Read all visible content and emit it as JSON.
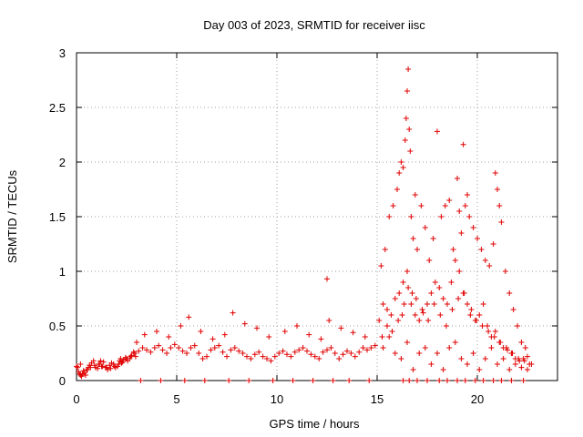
{
  "chart_data": {
    "type": "scatter",
    "title": "Day 003 of 2023, SRMTID for receiver iisc",
    "xlabel": "GPS time / hours",
    "ylabel": "SRMTID / TECUs",
    "xlim": [
      0,
      24
    ],
    "ylim": [
      0,
      3
    ],
    "xticks": [
      "0",
      "5",
      "10",
      "15",
      "20"
    ],
    "yticks": [
      "0",
      "0.5",
      "1",
      "1.5",
      "2",
      "2.5",
      "3"
    ],
    "grid": true,
    "marker": "+",
    "series_color": "#e00000",
    "series": [
      {
        "name": "iisc",
        "x": [
          0.0,
          0.1,
          0.2,
          0.3,
          0.4,
          0.5,
          0.7,
          0.9,
          1.1,
          1.3,
          1.5,
          1.7,
          1.9,
          2.1,
          2.3,
          2.5,
          2.7,
          2.9,
          3.1,
          3.3,
          3.5,
          3.7,
          3.9,
          4.1,
          4.3,
          4.5,
          4.7,
          4.9,
          5.1,
          5.3,
          5.5,
          5.7,
          5.9,
          6.1,
          6.3,
          6.5,
          6.7,
          6.9,
          7.1,
          7.3,
          7.5,
          7.7,
          7.9,
          8.1,
          8.3,
          8.5,
          8.7,
          8.9,
          9.1,
          9.3,
          9.5,
          9.7,
          9.9,
          10.1,
          10.3,
          10.5,
          10.7,
          10.9,
          11.1,
          11.3,
          11.5,
          11.7,
          11.9,
          12.1,
          12.3,
          12.5,
          12.7,
          12.9,
          13.1,
          13.3,
          13.5,
          13.7,
          13.9,
          14.1,
          14.3,
          14.5,
          14.7,
          14.9,
          15.1,
          15.3,
          15.5,
          15.7,
          15.9,
          16.1,
          16.3,
          16.5,
          16.7,
          16.9,
          17.1,
          17.3,
          17.5,
          17.7,
          17.9,
          18.1,
          18.3,
          18.5,
          18.7,
          18.9,
          19.1,
          19.3,
          19.5,
          19.7,
          19.9,
          20.1,
          20.3,
          20.5,
          20.7,
          20.9,
          21.1,
          21.3,
          21.5,
          21.7,
          21.9,
          22.1,
          22.3,
          22.5,
          22.7,
          0.2,
          0.6,
          1.2,
          2.2,
          3.0,
          3.4,
          4.0,
          4.6,
          5.2,
          5.6,
          6.2,
          6.8,
          7.4,
          7.8,
          8.4,
          9.0,
          9.6,
          10.4,
          11.0,
          11.6,
          12.2,
          12.6,
          13.2,
          13.8,
          14.4,
          15.2,
          15.4,
          15.6,
          15.8,
          16.0,
          16.1,
          16.2,
          16.3,
          16.4,
          16.45,
          16.5,
          16.55,
          16.6,
          16.65,
          16.7,
          16.8,
          16.9,
          17.0,
          17.2,
          17.4,
          17.6,
          17.8,
          18.0,
          18.2,
          18.4,
          18.6,
          18.8,
          19.0,
          19.1,
          19.2,
          19.3,
          19.4,
          19.5,
          19.6,
          19.8,
          20.0,
          20.2,
          20.4,
          20.6,
          20.8,
          20.9,
          21.0,
          21.1,
          21.2,
          21.4,
          21.6,
          21.8,
          22.0,
          22.2,
          22.4,
          12.5,
          15.3,
          15.6,
          15.9,
          16.2,
          16.5,
          16.8,
          17.1,
          17.4,
          17.7,
          18.0,
          18.3,
          18.6,
          18.9,
          19.2,
          19.5,
          19.8,
          20.1,
          20.4,
          20.7,
          21.0,
          21.3,
          21.6,
          21.9,
          22.2,
          22.5,
          3.2,
          4.2,
          5.4,
          6.4,
          7.6,
          8.6,
          9.8,
          10.8,
          11.8,
          12.8,
          13.6,
          14.6,
          16.3,
          16.6,
          17.0,
          17.5,
          18.1,
          18.5,
          19.0,
          19.4,
          19.9,
          20.3,
          20.8,
          21.2,
          21.7,
          22.3,
          0.05,
          0.15,
          0.25,
          0.35,
          0.45,
          0.55,
          0.65,
          0.75,
          0.85,
          0.95,
          1.05,
          1.15,
          1.25,
          1.35,
          1.45,
          1.55,
          1.65,
          1.75,
          1.85,
          1.95,
          2.05,
          2.15,
          2.25,
          2.35,
          2.45,
          2.55,
          2.65,
          2.75,
          2.85,
          2.95,
          15.25,
          15.5,
          15.75,
          16.05,
          16.25,
          16.35,
          16.55,
          16.75,
          16.95,
          17.25,
          17.55,
          17.85,
          18.15,
          18.45,
          18.75,
          19.05,
          19.35,
          19.65,
          19.95,
          20.25,
          20.55,
          20.85,
          21.15,
          21.45,
          21.75,
          22.05,
          22.35,
          22.6
        ],
        "y": [
          0.13,
          0.08,
          0.05,
          0.06,
          0.07,
          0.1,
          0.12,
          0.14,
          0.15,
          0.13,
          0.12,
          0.11,
          0.13,
          0.15,
          0.17,
          0.2,
          0.22,
          0.25,
          0.27,
          0.3,
          0.28,
          0.26,
          0.3,
          0.32,
          0.28,
          0.25,
          0.3,
          0.33,
          0.3,
          0.27,
          0.25,
          0.3,
          0.32,
          0.25,
          0.2,
          0.22,
          0.28,
          0.3,
          0.32,
          0.26,
          0.22,
          0.28,
          0.3,
          0.27,
          0.25,
          0.22,
          0.2,
          0.24,
          0.26,
          0.22,
          0.2,
          0.18,
          0.22,
          0.25,
          0.27,
          0.24,
          0.22,
          0.26,
          0.28,
          0.3,
          0.27,
          0.24,
          0.22,
          0.2,
          0.26,
          0.28,
          0.3,
          0.25,
          0.2,
          0.24,
          0.27,
          0.25,
          0.22,
          0.26,
          0.3,
          0.28,
          0.3,
          0.32,
          0.55,
          0.7,
          0.65,
          0.6,
          0.75,
          0.8,
          0.9,
          1.0,
          0.7,
          0.6,
          0.55,
          0.62,
          0.7,
          0.8,
          0.9,
          0.85,
          0.75,
          0.7,
          0.9,
          1.1,
          1.0,
          0.8,
          0.7,
          0.65,
          0.55,
          0.6,
          0.7,
          0.5,
          0.4,
          0.45,
          0.35,
          0.3,
          0.28,
          0.25,
          0.2,
          0.18,
          0.2,
          0.22,
          0.15,
          0.15,
          0.12,
          0.18,
          0.2,
          0.35,
          0.42,
          0.45,
          0.4,
          0.5,
          0.58,
          0.45,
          0.38,
          0.42,
          0.62,
          0.52,
          0.48,
          0.4,
          0.45,
          0.5,
          0.42,
          0.38,
          0.55,
          0.48,
          0.44,
          0.4,
          1.05,
          1.2,
          1.5,
          1.6,
          1.75,
          1.9,
          2.0,
          1.95,
          2.2,
          2.4,
          2.65,
          2.85,
          2.3,
          2.1,
          1.5,
          1.3,
          1.7,
          1.2,
          1.6,
          1.4,
          1.1,
          1.3,
          2.28,
          1.5,
          1.6,
          1.65,
          1.2,
          1.85,
          1.55,
          1.35,
          2.16,
          1.6,
          1.7,
          1.5,
          1.4,
          1.3,
          1.2,
          1.1,
          1.05,
          1.25,
          1.9,
          1.75,
          1.6,
          1.45,
          1.0,
          0.8,
          0.65,
          0.5,
          0.35,
          0.3,
          0.93,
          0.3,
          0.4,
          0.25,
          0.2,
          0.35,
          0.1,
          0.25,
          0.3,
          0.15,
          0.25,
          0.1,
          0.3,
          0.35,
          0.2,
          0.15,
          0.25,
          0.1,
          0.2,
          0.3,
          0.15,
          0.2,
          0.1,
          0.15,
          0.12,
          0.1,
          0.0,
          0.0,
          0.0,
          0.0,
          0.0,
          0.0,
          0.0,
          0.0,
          0.0,
          0.0,
          0.0,
          0.0,
          0.0,
          0.0,
          0.0,
          0.0,
          0.0,
          0.0,
          0.0,
          0.0,
          0.0,
          0.0,
          0.0,
          0.0,
          0.0,
          0.0,
          0.12,
          0.06,
          0.04,
          0.09,
          0.05,
          0.1,
          0.14,
          0.16,
          0.18,
          0.12,
          0.11,
          0.15,
          0.13,
          0.17,
          0.12,
          0.1,
          0.14,
          0.16,
          0.15,
          0.12,
          0.13,
          0.18,
          0.16,
          0.19,
          0.21,
          0.18,
          0.2,
          0.23,
          0.26,
          0.22,
          0.4,
          0.5,
          0.45,
          0.55,
          0.6,
          0.7,
          0.85,
          0.8,
          0.75,
          0.65,
          0.55,
          0.7,
          0.6,
          0.5,
          0.65,
          0.75,
          0.8,
          0.6,
          0.55,
          0.5,
          0.45,
          0.4,
          0.35,
          0.3,
          0.25,
          0.2,
          0.18,
          0.15
        ]
      }
    ]
  }
}
